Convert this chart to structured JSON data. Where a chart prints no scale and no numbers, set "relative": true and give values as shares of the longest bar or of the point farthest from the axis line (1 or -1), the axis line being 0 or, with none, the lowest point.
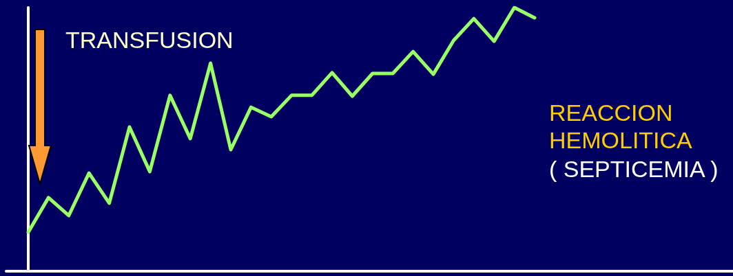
{
  "chart_data": {
    "type": "line",
    "relative": true,
    "categories": [
      null,
      null,
      null,
      null,
      null,
      null,
      null,
      null,
      null,
      null,
      null,
      null,
      null,
      null,
      null,
      null,
      null,
      null,
      null,
      null,
      null,
      null,
      null,
      null,
      null,
      null
    ],
    "series": [
      {
        "color": "#99ff66",
        "values": [
          0.148,
          0.279,
          0.211,
          0.372,
          0.258,
          0.547,
          0.378,
          0.667,
          0.503,
          0.789,
          0.461,
          0.622,
          0.586,
          0.667,
          0.667,
          0.753,
          0.664,
          0.75,
          0.75,
          0.833,
          0.747,
          0.875,
          0.958,
          0.872,
          1,
          0.961
        ]
      }
    ],
    "annotations": [
      "TRANSFUSION",
      "REACCION HEMOLITICA",
      "( SEPTICEMIA )"
    ],
    "grid": false,
    "marker": "none",
    "line_style": "solid"
  }
}
